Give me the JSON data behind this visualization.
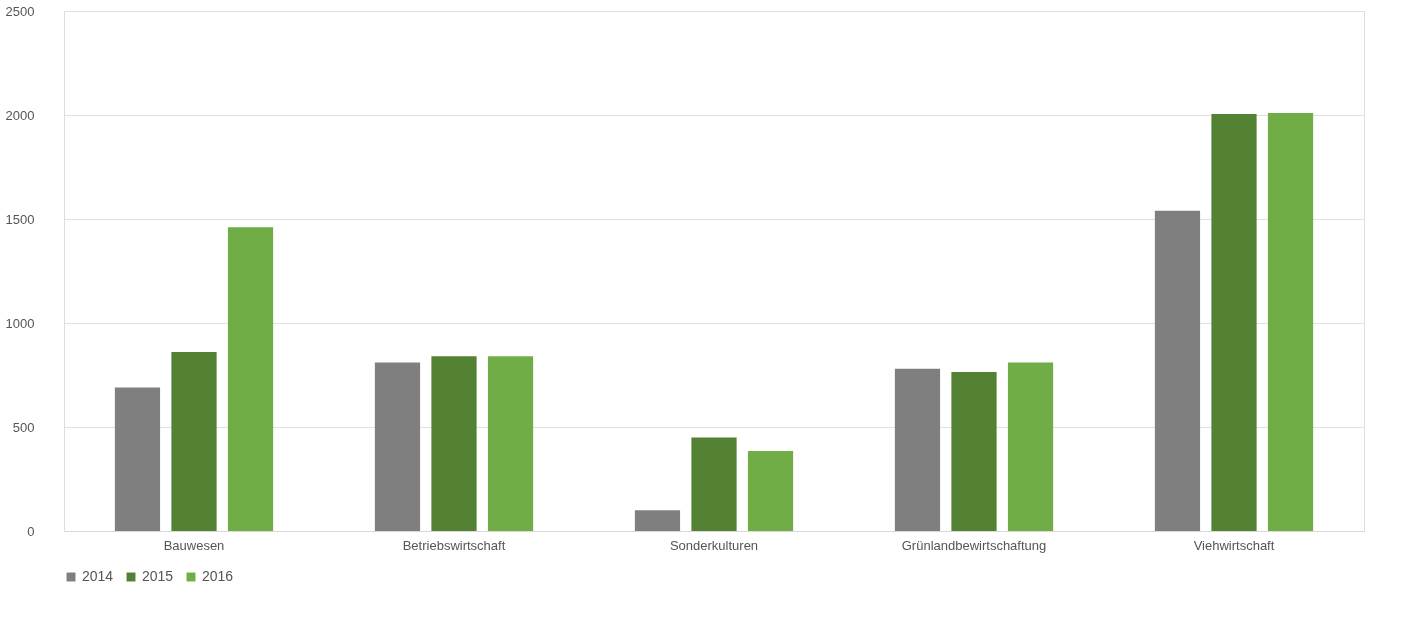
{
  "chart_data": {
    "type": "bar",
    "categories": [
      "Bauwesen",
      "Betriebswirtschaft",
      "Sonderkulturen",
      "Grünlandbewirtschaftung",
      "Viehwirtschaft"
    ],
    "series": [
      {
        "name": "2014",
        "color": "#7f7f7f",
        "values": [
          690,
          810,
          100,
          780,
          1540
        ]
      },
      {
        "name": "2015",
        "color": "#548235",
        "values": [
          860,
          840,
          450,
          765,
          2005
        ]
      },
      {
        "name": "2016",
        "color": "#70ad47",
        "values": [
          1460,
          840,
          385,
          810,
          2010
        ]
      }
    ],
    "ylim": [
      0,
      2500
    ],
    "yticks": [
      0,
      500,
      1000,
      1500,
      2000,
      2500
    ],
    "grid": "y",
    "legend": "bottom"
  }
}
